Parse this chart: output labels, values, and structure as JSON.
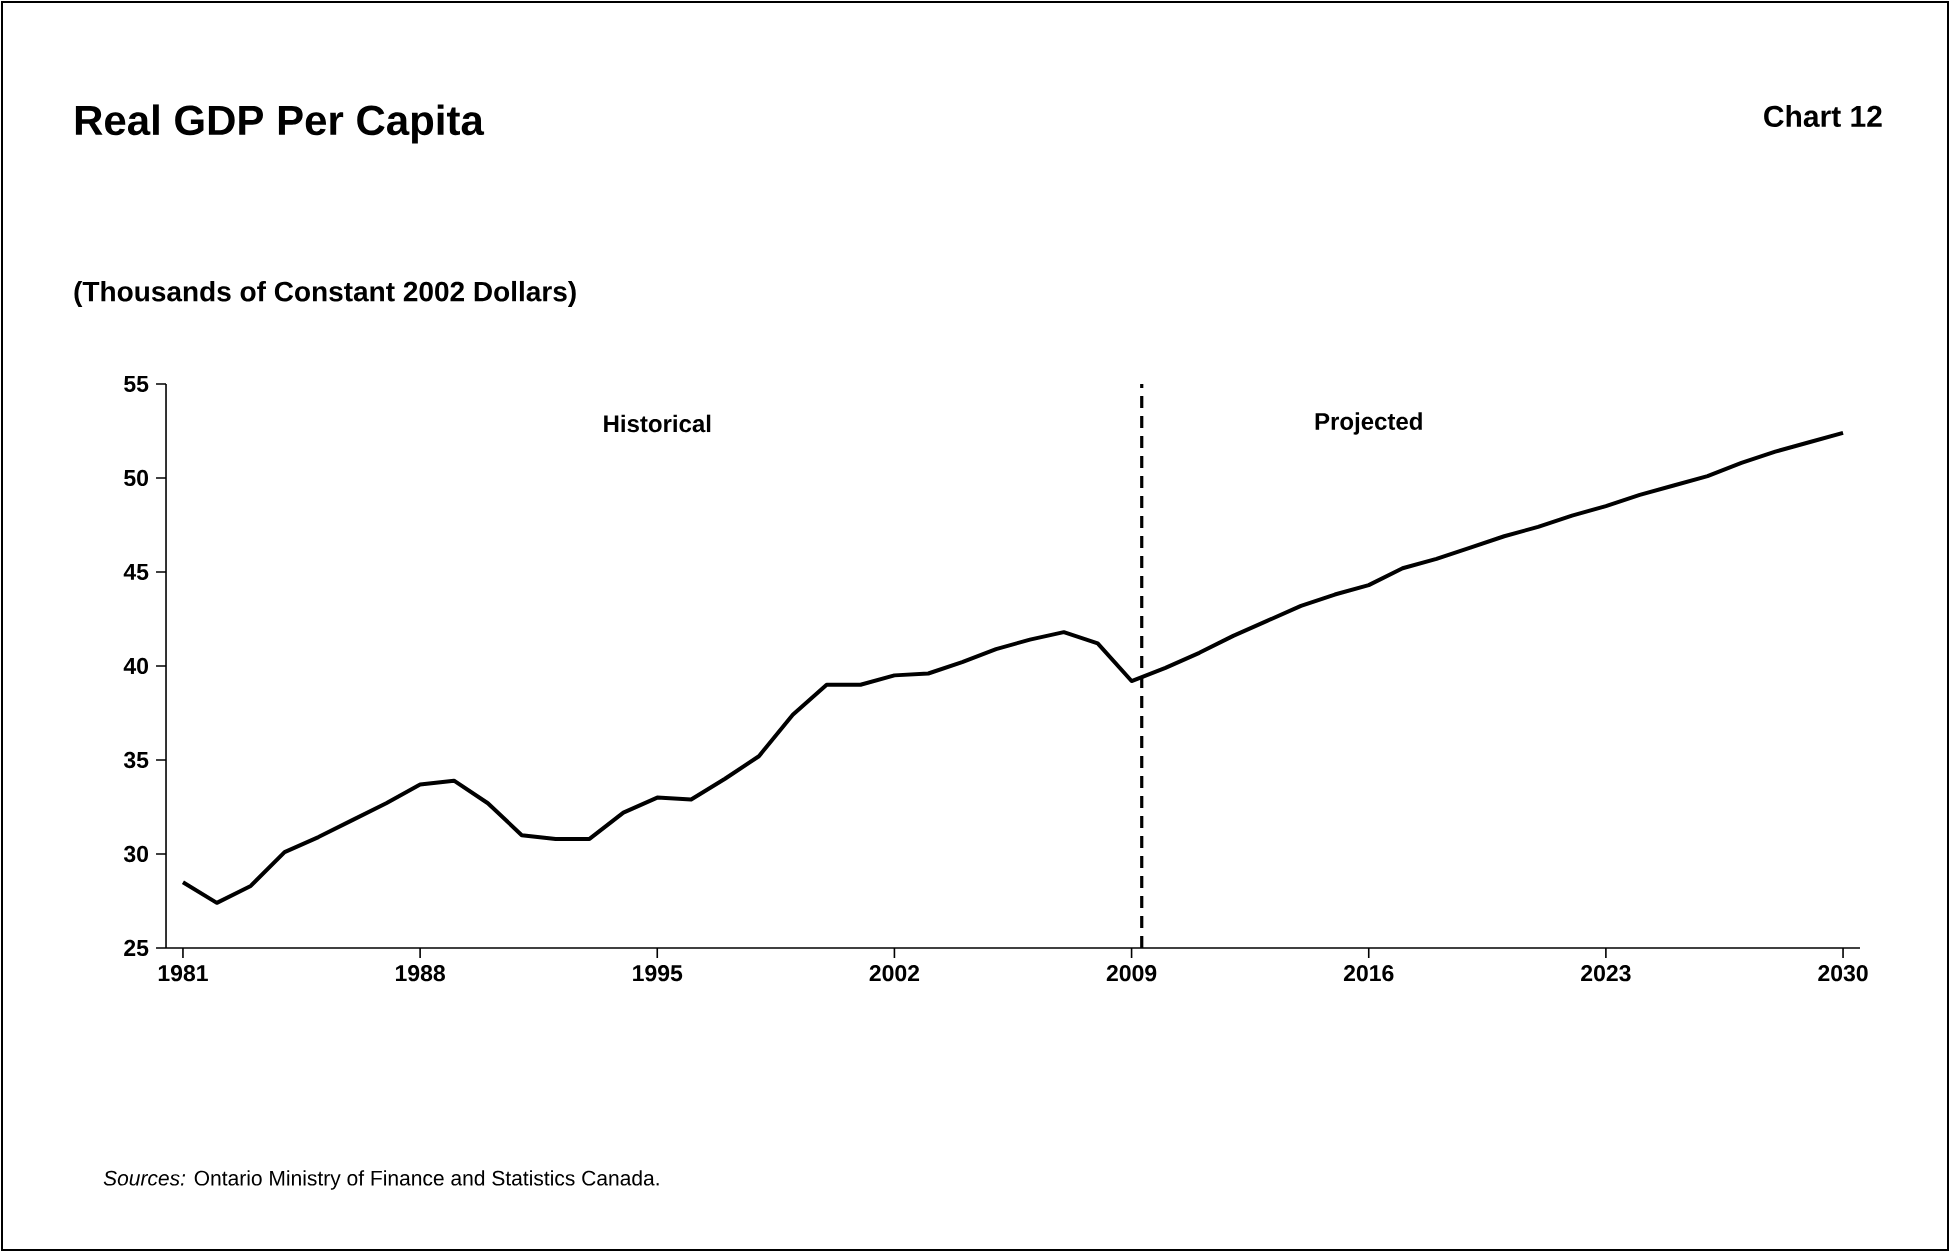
{
  "chart_data": {
    "type": "line",
    "title": "Real GDP Per Capita",
    "ylabel": "(Thousands of Constant 2002 Dollars)",
    "x": [
      1981,
      1982,
      1983,
      1984,
      1985,
      1986,
      1987,
      1988,
      1989,
      1990,
      1991,
      1992,
      1993,
      1994,
      1995,
      1996,
      1997,
      1998,
      1999,
      2000,
      2001,
      2002,
      2003,
      2004,
      2005,
      2006,
      2007,
      2008,
      2009,
      2010,
      2011,
      2012,
      2013,
      2014,
      2015,
      2016,
      2017,
      2018,
      2019,
      2020,
      2021,
      2022,
      2023,
      2024,
      2025,
      2026,
      2027,
      2028,
      2029,
      2030
    ],
    "series": [
      {
        "color": "#000000",
        "values": [
          28.5,
          27.4,
          28.3,
          30.1,
          30.9,
          31.8,
          32.7,
          33.7,
          33.9,
          32.7,
          31.0,
          30.8,
          30.8,
          32.2,
          33.0,
          32.9,
          34.0,
          35.2,
          37.4,
          39.0,
          39.0,
          39.5,
          39.6,
          40.2,
          40.9,
          41.4,
          41.8,
          41.2,
          39.2,
          39.9,
          40.7,
          41.6,
          42.4,
          43.2,
          43.8,
          44.3,
          45.2,
          45.7,
          46.3,
          46.9,
          47.4,
          48.0,
          48.5,
          49.1,
          49.6,
          50.1,
          50.8,
          51.4,
          51.9,
          52.4
        ]
      }
    ],
    "xlim": [
      1980.5,
      2030.5
    ],
    "ylim": [
      25,
      55
    ],
    "xticks": [
      1981,
      1988,
      1995,
      2002,
      2009,
      2016,
      2023,
      2030
    ],
    "yticks": [
      25,
      30,
      35,
      40,
      45,
      50,
      55
    ],
    "ref_lines": [
      {
        "axis": "x",
        "value": 2009.3,
        "color": "#000000",
        "line_style": "dashed"
      }
    ],
    "annotations": [
      "Chart 12",
      "Historical",
      "Projected",
      "*Sources:* Ontario Ministry of Finance and Statistics Canada."
    ],
    "grid": false,
    "marker": "none",
    "line_style": "solid"
  }
}
